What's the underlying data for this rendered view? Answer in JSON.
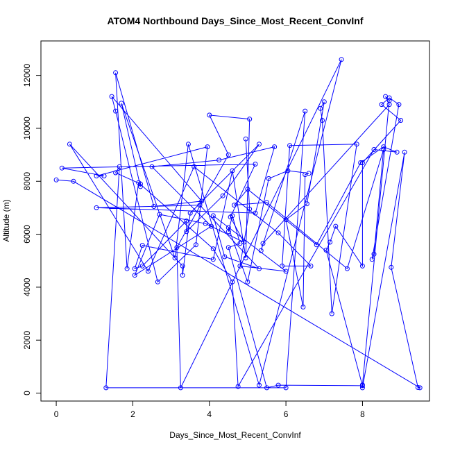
{
  "chart_data": {
    "type": "line",
    "title": "ATOM4 Northbound Days_Since_Most_Recent_ConvInf",
    "xlabel": "Days_Since_Most_Recent_ConvInf",
    "ylabel": "Altitude (m)",
    "xlim": [
      -0.4,
      9.75
    ],
    "ylim": [
      -300,
      13300
    ],
    "xticks": [
      0,
      2,
      4,
      6,
      8
    ],
    "yticks": [
      0,
      2000,
      4000,
      6000,
      8000,
      10000,
      12000
    ],
    "grid": false,
    "color": "#0000ff",
    "marker": "open-circle",
    "points": [
      [
        0.0,
        8050
      ],
      [
        0.45,
        8000
      ],
      [
        9.5,
        200
      ],
      [
        9.45,
        210
      ],
      [
        8.75,
        4750
      ],
      [
        9.1,
        9100
      ],
      [
        8.0,
        200
      ],
      [
        8.0,
        310
      ],
      [
        8.7,
        11050
      ],
      [
        8.6,
        11200
      ],
      [
        8.7,
        10900
      ],
      [
        5.4,
        5650
      ],
      [
        5.35,
        5380
      ],
      [
        6.5,
        10650
      ],
      [
        6.0,
        200
      ],
      [
        1.3,
        200
      ],
      [
        1.65,
        8550
      ],
      [
        1.55,
        8320
      ],
      [
        2.2,
        7900
      ],
      [
        2.2,
        7800
      ],
      [
        1.7,
        10950
      ],
      [
        3.1,
        5100
      ],
      [
        3.45,
        9400
      ],
      [
        5.3,
        300
      ],
      [
        7.45,
        12600
      ],
      [
        3.25,
        200
      ],
      [
        3.15,
        5500
      ],
      [
        4.5,
        9000
      ],
      [
        4.0,
        10500
      ],
      [
        5.05,
        10350
      ],
      [
        4.95,
        5100
      ],
      [
        4.6,
        8400
      ],
      [
        4.1,
        5050
      ],
      [
        2.25,
        5580
      ],
      [
        2.05,
        4700
      ],
      [
        2.25,
        4800
      ],
      [
        3.4,
        6500
      ],
      [
        3.4,
        6100
      ],
      [
        4.35,
        7450
      ],
      [
        5.3,
        9400
      ],
      [
        3.5,
        6800
      ],
      [
        3.3,
        4450
      ],
      [
        3.3,
        4800
      ],
      [
        0.35,
        9400
      ],
      [
        2.4,
        4600
      ],
      [
        3.6,
        8550
      ],
      [
        5.8,
        6050
      ],
      [
        6.65,
        4800
      ],
      [
        5.9,
        4800
      ],
      [
        6.1,
        9350
      ],
      [
        7.85,
        9400
      ],
      [
        7.2,
        3000
      ],
      [
        6.95,
        10300
      ],
      [
        6.9,
        10750
      ],
      [
        7.0,
        11000
      ],
      [
        6.55,
        7150
      ],
      [
        6.0,
        6550
      ],
      [
        6.45,
        3250
      ],
      [
        6.5,
        8250
      ],
      [
        6.6,
        8300
      ],
      [
        6.05,
        8400
      ],
      [
        5.55,
        8100
      ],
      [
        5.0,
        4200
      ],
      [
        4.5,
        6250
      ],
      [
        4.5,
        6100
      ],
      [
        4.6,
        6700
      ],
      [
        4.8,
        5650
      ],
      [
        4.5,
        5500
      ],
      [
        5.5,
        200
      ],
      [
        5.8,
        300
      ],
      [
        8.0,
        280
      ],
      [
        7.05,
        5400
      ],
      [
        7.15,
        5700
      ],
      [
        7.3,
        6300
      ],
      [
        8.0,
        4800
      ],
      [
        8.0,
        8700
      ],
      [
        9.0,
        10300
      ],
      [
        8.5,
        10900
      ],
      [
        8.7,
        11150
      ],
      [
        8.95,
        10900
      ],
      [
        8.25,
        5050
      ],
      [
        8.3,
        5250
      ],
      [
        8.55,
        9200
      ],
      [
        7.6,
        4700
      ],
      [
        5.5,
        7200
      ],
      [
        4.65,
        7100
      ],
      [
        5.0,
        7700
      ],
      [
        6.8,
        5600
      ],
      [
        7.95,
        8700
      ],
      [
        8.55,
        9300
      ],
      [
        8.9,
        9100
      ],
      [
        8.3,
        9200
      ],
      [
        4.75,
        250
      ],
      [
        4.6,
        4200
      ],
      [
        4.1,
        5450
      ],
      [
        2.15,
        7950
      ],
      [
        1.85,
        4700
      ],
      [
        1.55,
        12100
      ],
      [
        2.55,
        7050
      ],
      [
        3.8,
        7250
      ],
      [
        1.45,
        11200
      ],
      [
        1.55,
        10650
      ],
      [
        2.65,
        4200
      ],
      [
        3.65,
        5600
      ],
      [
        3.95,
        9300
      ],
      [
        1.05,
        8200
      ],
      [
        1.25,
        8200
      ],
      [
        0.15,
        8500
      ],
      [
        5.2,
        8650
      ],
      [
        4.55,
        6650
      ],
      [
        4.9,
        5700
      ],
      [
        3.9,
        6400
      ],
      [
        2.7,
        6750
      ],
      [
        2.05,
        4450
      ],
      [
        4.05,
        6300
      ],
      [
        2.5,
        8550
      ],
      [
        4.25,
        8800
      ],
      [
        5.7,
        9300
      ],
      [
        5.2,
        6800
      ],
      [
        1.05,
        7000
      ],
      [
        3.75,
        7100
      ],
      [
        5.3,
        4700
      ],
      [
        4.4,
        5150
      ],
      [
        4.1,
        6700
      ],
      [
        6.0,
        4600
      ],
      [
        4.8,
        4800
      ],
      [
        5.05,
        6950
      ],
      [
        4.95,
        9600
      ]
    ]
  }
}
